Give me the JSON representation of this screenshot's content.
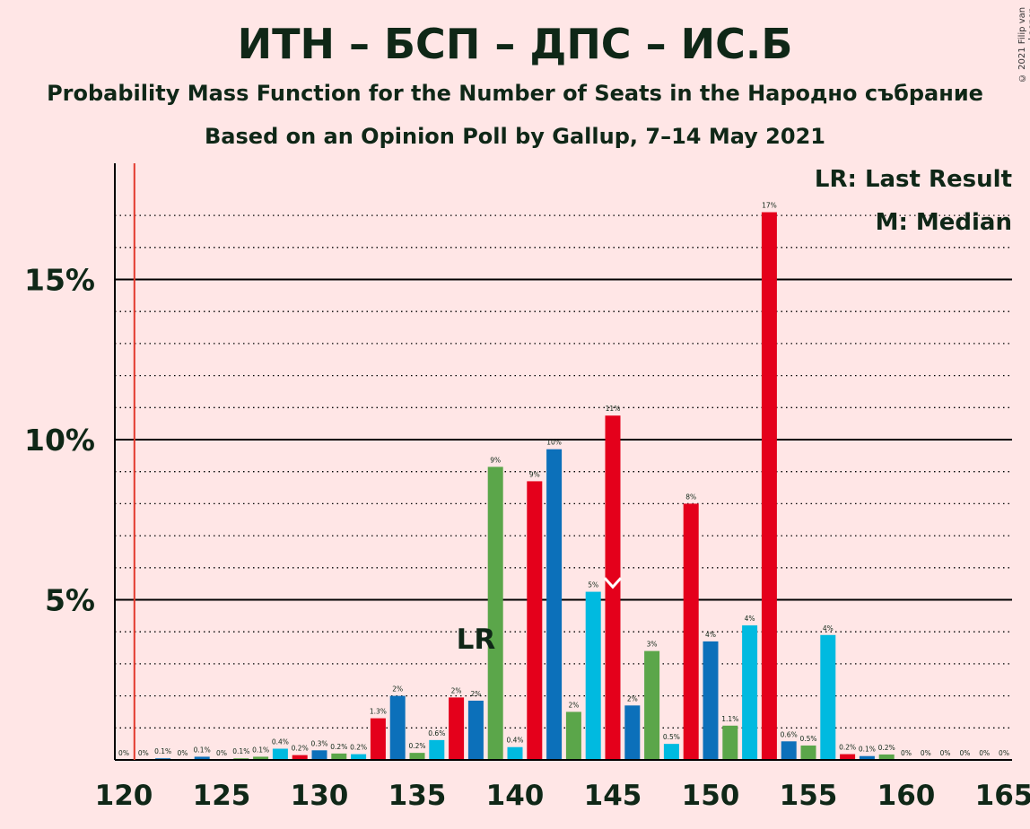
{
  "header": {
    "title": "ИТН – БСП – ДПС – ИС.Б",
    "subtitle": "Probability Mass Function for the Number of Seats in the Народно събрание",
    "poll": "Based on an Opinion Poll by Gallup, 7–14 May 2021",
    "copyright": "© 2021 Filip van Laenen"
  },
  "legend": {
    "last_result": "LR: Last Result",
    "median": "M: Median"
  },
  "colors": {
    "red": "#E4001B",
    "blue": "#0C70BA",
    "cyan": "#00BAE0",
    "green": "#5BA64A",
    "background": "#FFE6E6",
    "text": "#0F2717",
    "majority_line": "#E23A2E"
  },
  "chart_data": {
    "type": "bar",
    "xlim": [
      120,
      165
    ],
    "ylim": [
      0,
      18.6
    ],
    "x_ticks": [
      120,
      125,
      130,
      135,
      140,
      145,
      150,
      155,
      160,
      165
    ],
    "y_ticks": [
      {
        "value": 5,
        "label": "5%"
      },
      {
        "value": 10,
        "label": "10%"
      },
      {
        "value": 15,
        "label": "15%"
      }
    ],
    "grid": "dotted every 1%, solid every 5%",
    "vertical_line_x": 121,
    "last_result_seat": 138,
    "last_result_label": "LR",
    "median_seat": 145,
    "bars": [
      {
        "seat": 120,
        "value": 0,
        "label": "0%",
        "color": "red"
      },
      {
        "seat": 121,
        "value": 0,
        "label": "0%",
        "color": "red"
      },
      {
        "seat": 122,
        "value": 0.05,
        "label": "0.1%",
        "color": "blue"
      },
      {
        "seat": 123,
        "value": 0,
        "label": "0%",
        "color": "red"
      },
      {
        "seat": 124,
        "value": 0.1,
        "label": "0.1%",
        "color": "blue"
      },
      {
        "seat": 125,
        "value": 0,
        "label": "0%",
        "color": "red"
      },
      {
        "seat": 126,
        "value": 0.05,
        "label": "0.1%",
        "color": "green"
      },
      {
        "seat": 127,
        "value": 0.1,
        "label": "0.1%",
        "color": "green"
      },
      {
        "seat": 128,
        "value": 0.35,
        "label": "0.4%",
        "color": "cyan"
      },
      {
        "seat": 129,
        "value": 0.15,
        "label": "0.2%",
        "color": "red"
      },
      {
        "seat": 130,
        "value": 0.3,
        "label": "0.3%",
        "color": "blue"
      },
      {
        "seat": 131,
        "value": 0.2,
        "label": "0.2%",
        "color": "green"
      },
      {
        "seat": 132,
        "value": 0.18,
        "label": "0.2%",
        "color": "cyan"
      },
      {
        "seat": 133,
        "value": 1.3,
        "label": "1.3%",
        "color": "red"
      },
      {
        "seat": 134,
        "value": 2.0,
        "label": "2%",
        "color": "blue"
      },
      {
        "seat": 135,
        "value": 0.22,
        "label": "0.2%",
        "color": "green"
      },
      {
        "seat": 136,
        "value": 0.62,
        "label": "0.6%",
        "color": "cyan"
      },
      {
        "seat": 137,
        "value": 1.95,
        "label": "2%",
        "color": "red"
      },
      {
        "seat": 138,
        "value": 1.85,
        "label": "2%",
        "color": "blue"
      },
      {
        "seat": 139,
        "value": 9.15,
        "label": "9%",
        "color": "green"
      },
      {
        "seat": 140,
        "value": 0.4,
        "label": "0.4%",
        "color": "cyan"
      },
      {
        "seat": 141,
        "value": 8.7,
        "label": "9%",
        "color": "red"
      },
      {
        "seat": 142,
        "value": 9.7,
        "label": "10%",
        "color": "blue"
      },
      {
        "seat": 143,
        "value": 1.5,
        "label": "2%",
        "color": "green"
      },
      {
        "seat": 144,
        "value": 5.25,
        "label": "5%",
        "color": "cyan"
      },
      {
        "seat": 145,
        "value": 10.75,
        "label": "11%",
        "color": "red"
      },
      {
        "seat": 146,
        "value": 1.7,
        "label": "2%",
        "color": "blue"
      },
      {
        "seat": 147,
        "value": 3.4,
        "label": "3%",
        "color": "green"
      },
      {
        "seat": 148,
        "value": 0.5,
        "label": "0.5%",
        "color": "cyan"
      },
      {
        "seat": 149,
        "value": 8.0,
        "label": "8%",
        "color": "red"
      },
      {
        "seat": 150,
        "value": 3.7,
        "label": "4%",
        "color": "blue"
      },
      {
        "seat": 151,
        "value": 1.07,
        "label": "1.1%",
        "color": "green"
      },
      {
        "seat": 152,
        "value": 4.2,
        "label": "4%",
        "color": "cyan"
      },
      {
        "seat": 153,
        "value": 17.1,
        "label": "17%",
        "color": "red"
      },
      {
        "seat": 154,
        "value": 0.58,
        "label": "0.6%",
        "color": "blue"
      },
      {
        "seat": 155,
        "value": 0.45,
        "label": "0.5%",
        "color": "green"
      },
      {
        "seat": 156,
        "value": 3.9,
        "label": "4%",
        "color": "cyan"
      },
      {
        "seat": 157,
        "value": 0.18,
        "label": "0.2%",
        "color": "red"
      },
      {
        "seat": 158,
        "value": 0.12,
        "label": "0.1%",
        "color": "blue"
      },
      {
        "seat": 159,
        "value": 0.17,
        "label": "0.2%",
        "color": "green"
      },
      {
        "seat": 160,
        "value": 0,
        "label": "0%",
        "color": "cyan"
      },
      {
        "seat": 161,
        "value": 0,
        "label": "0%",
        "color": "red"
      },
      {
        "seat": 162,
        "value": 0,
        "label": "0%",
        "color": "blue"
      },
      {
        "seat": 163,
        "value": 0,
        "label": "0%",
        "color": "green"
      },
      {
        "seat": 164,
        "value": 0,
        "label": "0%",
        "color": "cyan"
      },
      {
        "seat": 165,
        "value": 0,
        "label": "0%",
        "color": "red"
      }
    ]
  }
}
